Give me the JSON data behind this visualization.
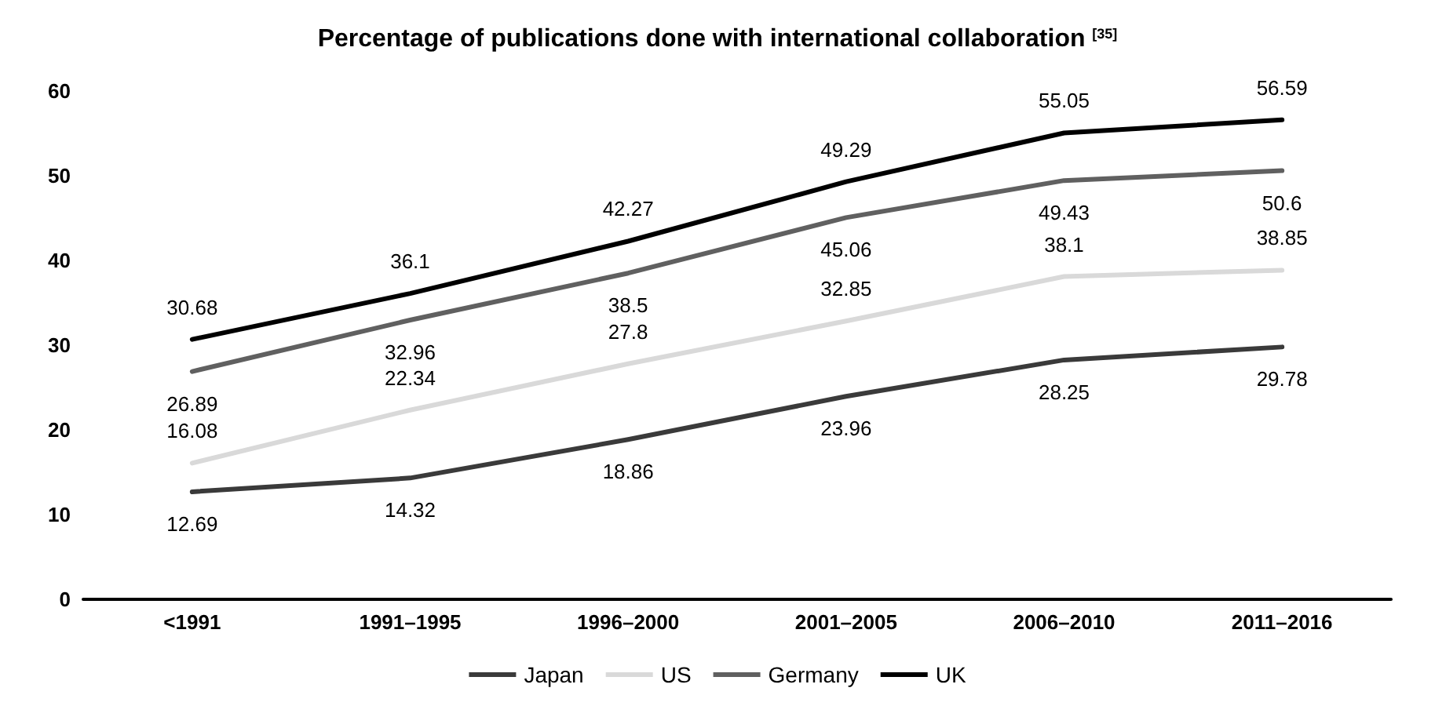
{
  "chart_data": {
    "type": "line",
    "title": "Percentage of publications done with international collaboration $^{[35]}$",
    "categories": [
      "<1991",
      "1991–1995",
      "1996–2000",
      "2001–2005",
      "2006–2010",
      "2011–2016"
    ],
    "series": [
      {
        "name": "Japan",
        "color": "#3a3a3a",
        "values": [
          12.69,
          14.32,
          18.86,
          23.96,
          28.25,
          29.78
        ]
      },
      {
        "name": "US",
        "color": "#d9d9d9",
        "values": [
          16.08,
          22.34,
          27.8,
          32.85,
          38.1,
          38.85
        ]
      },
      {
        "name": "Germany",
        "color": "#606060",
        "values": [
          26.89,
          32.96,
          38.5,
          45.06,
          49.43,
          50.6
        ]
      },
      {
        "name": "UK",
        "color": "#000000",
        "values": [
          30.68,
          36.1,
          42.27,
          49.29,
          55.05,
          56.59
        ]
      }
    ],
    "ylim": [
      0,
      60
    ],
    "yticks": [
      0,
      10,
      20,
      30,
      40,
      50,
      60
    ],
    "grid": false,
    "legend": "bottom",
    "data_labels": true,
    "marker": "none",
    "line_style": "solid"
  }
}
